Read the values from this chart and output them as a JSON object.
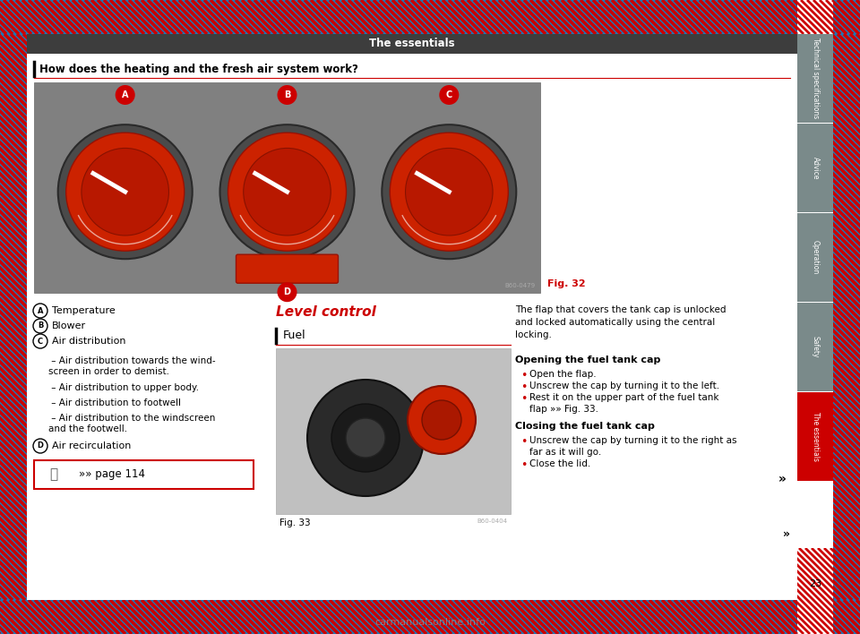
{
  "title": "The essentials",
  "section_title": "How does the heating and the fresh air system work?",
  "fig32_label": "Fig. 32",
  "fig33_label": "Fig. 33",
  "fig32_code": "B60-0479",
  "fig33_code": "B60-0404",
  "level_control_title": "Level control",
  "fuel_label": "Fuel",
  "items_A": "Temperature",
  "items_B": "Blower",
  "items_C": "Air distribution",
  "item_D": "Air recirculation",
  "sub_items": [
    " – Air distribution towards the wind-\nscreen in order to demist.",
    " – Air distribution to upper body.",
    " – Air distribution to footwell",
    " – Air distribution to the windscreen\nand the footwell."
  ],
  "page_ref": "»» page 114",
  "page_number": "23",
  "sidebar_labels": [
    "Technical specifications",
    "Advice",
    "Operation",
    "Safety",
    "The essentials"
  ],
  "opening_title": "Opening the fuel tank cap",
  "opening_bullets": [
    "Open the flap.",
    "Unscrew the cap by turning it to the left.",
    "Rest it on the upper part of the fuel tank\nflap »» Fig. 33."
  ],
  "closing_title": "Closing the fuel tank cap",
  "closing_bullets": [
    "Unscrew the cap by turning it to the right as\nfar as it will go.",
    "Close the lid."
  ],
  "flap_text": "The flap that covers the tank cap is unlocked\nand locked automatically using the central\nlocking.",
  "arrow_right": "»",
  "bg_color": "#ffffff",
  "header_bg": "#3d3d3d",
  "header_text_color": "#ffffff",
  "sidebar_active_color": "#cc0000",
  "sidebar_inactive_color": "#7a8a8a",
  "sidebar_text_color": "#ffffff",
  "hatch_color": "#cc0000",
  "section_line_color": "#cc0000",
  "level_control_color": "#cc0000",
  "fuel_line_color": "#cc0000",
  "circle_bg_color": "#cc0000",
  "circle_text_color": "#ffffff",
  "ref_box_border": "#cc0000",
  "fig_bg": "#808080",
  "knob_outer": "#5a5a5a",
  "knob_red": "#cc2200",
  "knob_dark": "#3a3a3a"
}
